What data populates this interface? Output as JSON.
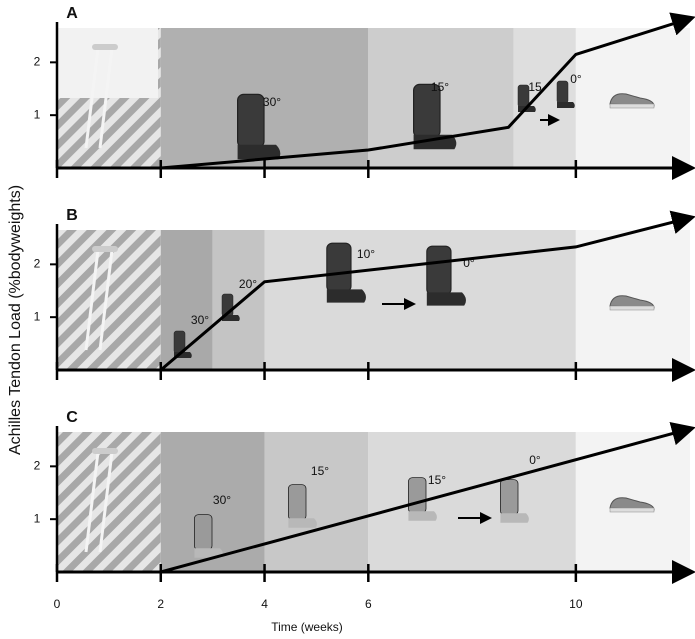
{
  "figure": {
    "ylabel": "Achilles Tendon Load (%bodyweights)",
    "xlabel": "Time (weeks)"
  },
  "chart_data": [
    {
      "type": "line",
      "title": "A",
      "x": [
        0,
        2,
        6,
        8.7,
        10,
        12.2
      ],
      "values": [
        0,
        0,
        0.34,
        0.77,
        2.15,
        2.83
      ],
      "color": "#000000",
      "xlim": [
        0,
        12.2
      ],
      "ylim": [
        0,
        2.65
      ],
      "xticks": [
        0,
        2,
        4,
        6,
        10
      ],
      "yticks": [
        1,
        2
      ],
      "bands": [
        {
          "from": 0,
          "to": 2,
          "color": "hatch"
        },
        {
          "from": 2,
          "to": 6,
          "color": "#b0b0b0"
        },
        {
          "from": 6,
          "to": 8.8,
          "color": "#cdcdcd"
        },
        {
          "from": 8.8,
          "to": 10,
          "color": "#dedede"
        },
        {
          "from": 10,
          "to": 12.2,
          "color": "#f3f3f3"
        }
      ],
      "annotations": [
        "30°",
        "15°",
        "15",
        "0°"
      ]
    },
    {
      "type": "line",
      "title": "B",
      "x": [
        0,
        2,
        4,
        10,
        12.2
      ],
      "values": [
        0,
        0,
        1.67,
        2.33,
        2.88
      ],
      "color": "#000000",
      "xlim": [
        0,
        12.2
      ],
      "ylim": [
        0,
        2.65
      ],
      "xticks": [
        0,
        2,
        4,
        6,
        10
      ],
      "yticks": [
        1,
        2
      ],
      "bands": [
        {
          "from": 0,
          "to": 2,
          "color": "hatch"
        },
        {
          "from": 2,
          "to": 3,
          "color": "#a9a9a9"
        },
        {
          "from": 3,
          "to": 4,
          "color": "#c4c4c4"
        },
        {
          "from": 4,
          "to": 10,
          "color": "#dadada"
        },
        {
          "from": 10,
          "to": 12.2,
          "color": "#f3f3f3"
        }
      ],
      "annotations": [
        "30°",
        "20°",
        "10°",
        "0°"
      ]
    },
    {
      "type": "line",
      "title": "C",
      "x": [
        0,
        2,
        12.2
      ],
      "values": [
        0,
        0,
        2.71
      ],
      "color": "#000000",
      "xlim": [
        0,
        12.2
      ],
      "ylim": [
        0,
        2.65
      ],
      "xticks": [
        0,
        2,
        4,
        6,
        10
      ],
      "yticks": [
        1,
        2
      ],
      "bands": [
        {
          "from": 0,
          "to": 2,
          "color": "hatch"
        },
        {
          "from": 2,
          "to": 4,
          "color": "#ababab"
        },
        {
          "from": 4,
          "to": 6,
          "color": "#c8c8c8"
        },
        {
          "from": 6,
          "to": 10,
          "color": "#dadada"
        },
        {
          "from": 10,
          "to": 12.2,
          "color": "#f3f3f3"
        }
      ],
      "annotations": [
        "30°",
        "15°",
        "15°",
        "0°"
      ]
    }
  ]
}
